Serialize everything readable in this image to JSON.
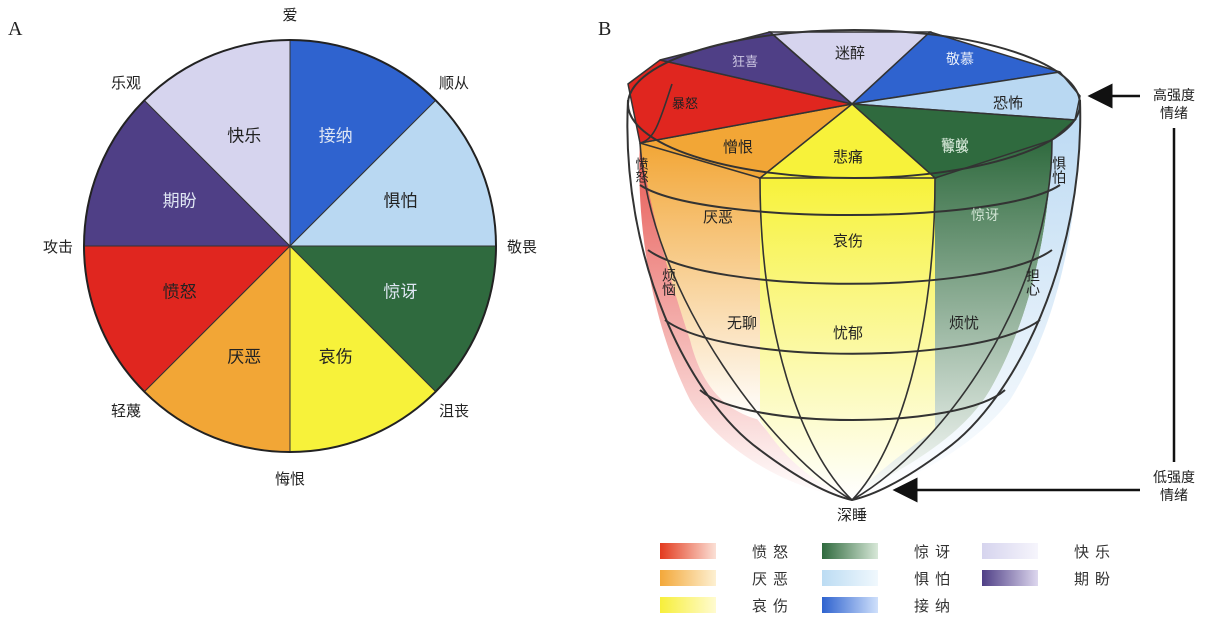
{
  "panel_a": {
    "letter": "A",
    "outer_labels": [
      "爱",
      "顺从",
      "敬畏",
      "沮丧",
      "悔恨",
      "轻蔑",
      "攻击",
      "乐观"
    ],
    "sectors": [
      {
        "label": "接纳",
        "color": "#2f63cf"
      },
      {
        "label": "惧怕",
        "color": "#b9d8f2"
      },
      {
        "label": "惊讶",
        "color": "#2f6a3e"
      },
      {
        "label": "哀伤",
        "color": "#f7f23a"
      },
      {
        "label": "厌恶",
        "color": "#f2a636"
      },
      {
        "label": "愤怒",
        "color": "#e0261f"
      },
      {
        "label": "期盼",
        "color": "#4f3f86"
      },
      {
        "label": "快乐",
        "color": "#d6d4ee"
      }
    ]
  },
  "panel_b": {
    "letter": "B",
    "top_labels": [
      "迷醉",
      "敬慕",
      "恐怖",
      "警觉",
      "暴怒",
      "狂喜"
    ],
    "ring1_labels": [
      "憎恨",
      "悲痛",
      "惊骇",
      "惧怕",
      "愤怒"
    ],
    "ring2_labels": [
      "厌恶",
      "哀伤",
      "惊讶"
    ],
    "ring3_labels": [
      "烦恼",
      "无聊",
      "忧郁",
      "烦忧",
      "担心"
    ],
    "bottom_label": "深睡",
    "high_label": "高强度情绪",
    "low_label": "低强度情绪"
  },
  "legend": [
    {
      "label": "愤怒",
      "color": "#e33b1e"
    },
    {
      "label": "厌恶",
      "color": "#f3a83a"
    },
    {
      "label": "哀伤",
      "color": "#f7ef3a"
    },
    {
      "label": "惊讶",
      "color": "#2f6a3e"
    },
    {
      "label": "惧怕",
      "color": "#bcdcf3"
    },
    {
      "label": "接纳",
      "color": "#2f63cf"
    },
    {
      "label": "快乐",
      "color": "#d6d4ee"
    },
    {
      "label": "期盼",
      "color": "#4f3f86"
    }
  ]
}
